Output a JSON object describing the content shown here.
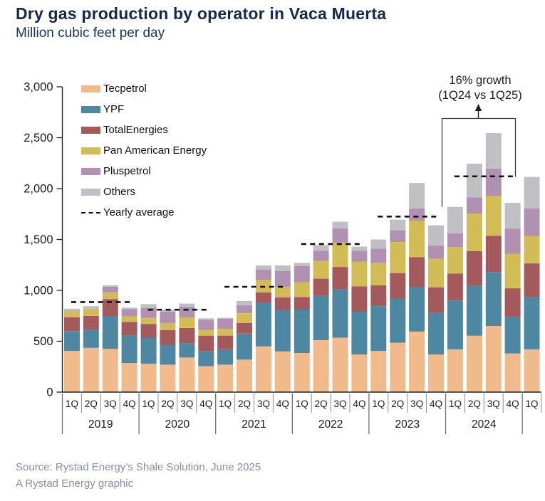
{
  "header": {
    "title": "Dry gas production by operator in Vaca Muerta",
    "subtitle": "Million cubic feet per day"
  },
  "annotation": {
    "line1": "16% growth",
    "line2": "(1Q24 vs 1Q25)"
  },
  "footer": {
    "source_line1": "Source: Rystad Energy’s Shale Solution, June 2025",
    "source_line2": "A Rystad Energy graphic"
  },
  "legend": {
    "average_label": "Yearly average"
  },
  "chart_data": {
    "type": "bar",
    "stacked": true,
    "title": "Dry gas production by operator in Vaca Muerta",
    "ylabel": "Million cubic feet per day",
    "ylim": [
      0,
      3000
    ],
    "yticks": [
      {
        "value": 0,
        "label": "0"
      },
      {
        "value": 500,
        "label": "500"
      },
      {
        "value": 1000,
        "label": "1,000"
      },
      {
        "value": 1500,
        "label": "1,500"
      },
      {
        "value": 2000,
        "label": "2,000"
      },
      {
        "value": 2500,
        "label": "2,500"
      },
      {
        "value": 3000,
        "label": "3,000"
      }
    ],
    "categories": [
      "1Q",
      "2Q",
      "3Q",
      "4Q",
      "1Q",
      "2Q",
      "3Q",
      "4Q",
      "1Q",
      "2Q",
      "3Q",
      "4Q",
      "1Q",
      "2Q",
      "3Q",
      "4Q",
      "1Q",
      "2Q",
      "3Q",
      "4Q",
      "1Q",
      "2Q",
      "3Q",
      "4Q",
      "1Q"
    ],
    "year_groups": [
      {
        "label": "2019",
        "span": 4
      },
      {
        "label": "2020",
        "span": 4
      },
      {
        "label": "2021",
        "span": 4
      },
      {
        "label": "2022",
        "span": 4
      },
      {
        "label": "2023",
        "span": 4
      },
      {
        "label": "2024",
        "span": 4
      },
      {
        "label": "",
        "span": 1
      }
    ],
    "series": [
      {
        "name": "Tecpetrol",
        "color": "#F0BA8A",
        "values": [
          405,
          435,
          425,
          285,
          280,
          270,
          340,
          255,
          270,
          320,
          450,
          400,
          385,
          510,
          535,
          370,
          405,
          485,
          595,
          370,
          420,
          555,
          650,
          380,
          420
        ]
      },
      {
        "name": "YPF",
        "color": "#4D87A1",
        "values": [
          195,
          180,
          320,
          270,
          255,
          195,
          140,
          145,
          145,
          255,
          425,
          405,
          430,
          440,
          475,
          420,
          440,
          435,
          440,
          410,
          480,
          490,
          530,
          355,
          515
        ]
      },
      {
        "name": "TotalEnergies",
        "color": "#A45A5C",
        "values": [
          135,
          135,
          170,
          135,
          135,
          145,
          150,
          155,
          140,
          105,
          105,
          125,
          120,
          165,
          220,
          250,
          205,
          250,
          290,
          250,
          265,
          340,
          355,
          285,
          330
        ]
      },
      {
        "name": "Pan American Energy",
        "color": "#D2BC55",
        "values": [
          60,
          65,
          65,
          55,
          60,
          65,
          105,
          55,
          65,
          95,
          120,
          105,
          145,
          175,
          240,
          240,
          220,
          305,
          360,
          280,
          260,
          370,
          390,
          340,
          270
        ]
      },
      {
        "name": "Pluspetrol",
        "color": "#B191B1",
        "values": [
          5,
          5,
          55,
          70,
          95,
          115,
          105,
          100,
          100,
          80,
          105,
          155,
          160,
          100,
          140,
          110,
          140,
          115,
          120,
          130,
          135,
          160,
          270,
          245,
          270
        ]
      },
      {
        "name": "Others",
        "color": "#C0C0C4",
        "values": [
          20,
          25,
          15,
          15,
          40,
          20,
          30,
          15,
          10,
          40,
          40,
          55,
          30,
          55,
          65,
          40,
          90,
          105,
          250,
          200,
          260,
          330,
          350,
          255,
          310
        ]
      }
    ],
    "yearly_averages": [
      885,
      810,
      1035,
      1455,
      1725,
      2120
    ],
    "annotation": {
      "text": "16% growth (1Q24 vs 1Q25)",
      "from_bar": "1Q 2024",
      "to_bar": "1Q 2025",
      "growth_pct": 16
    },
    "legend_position": "upper-left-inside",
    "grid": false
  }
}
